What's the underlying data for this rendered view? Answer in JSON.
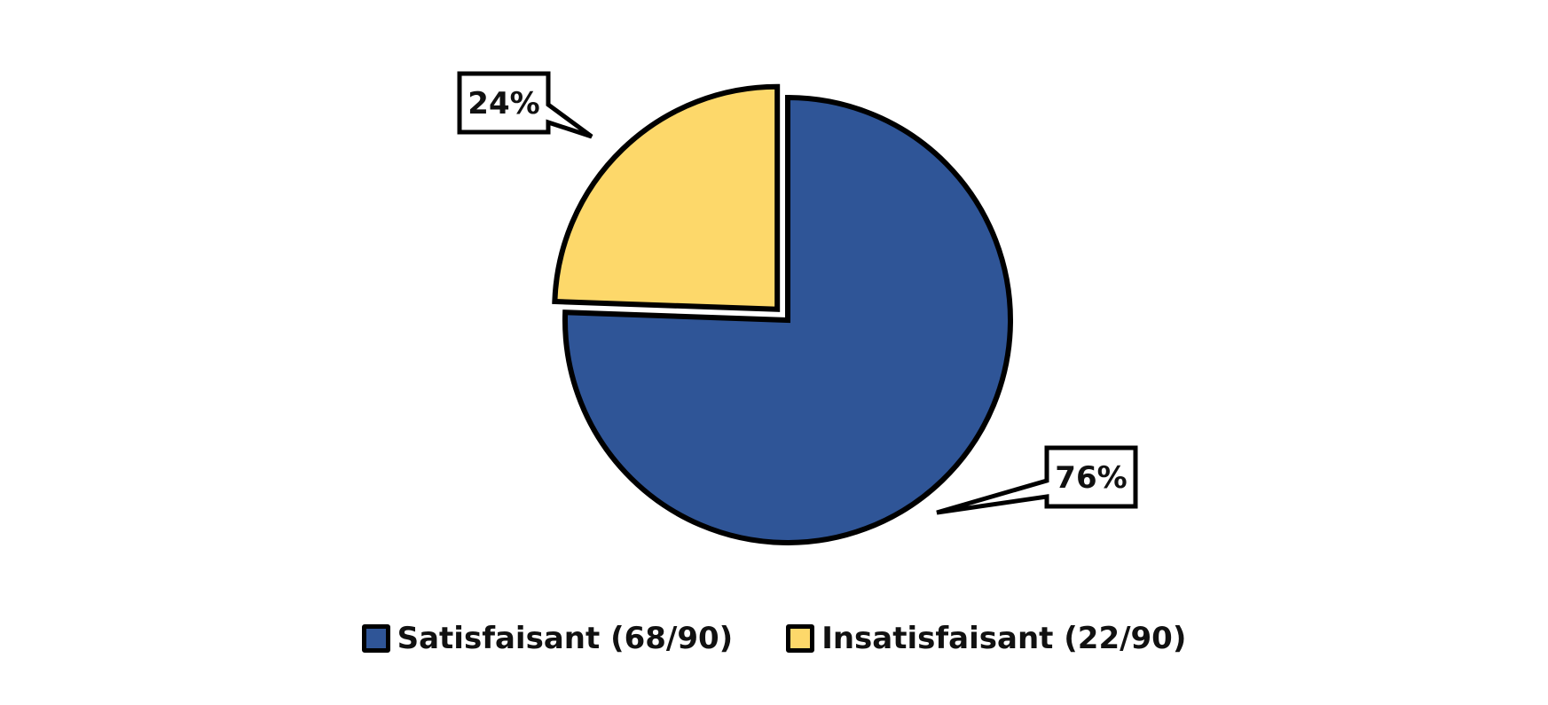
{
  "chart_data": {
    "type": "pie",
    "title": "",
    "slices": [
      {
        "name": "Satisfaisant (68/90)",
        "value": 68,
        "percent_label": "76%",
        "color": "#2F5597"
      },
      {
        "name": "Insatisfaisant (22/90)",
        "value": 22,
        "percent_label": "24%",
        "color": "#FDD86A"
      }
    ],
    "total": 90,
    "exploded_slice": "Insatisfaisant (22/90)",
    "legend_position": "bottom",
    "stroke_color": "#000000"
  }
}
